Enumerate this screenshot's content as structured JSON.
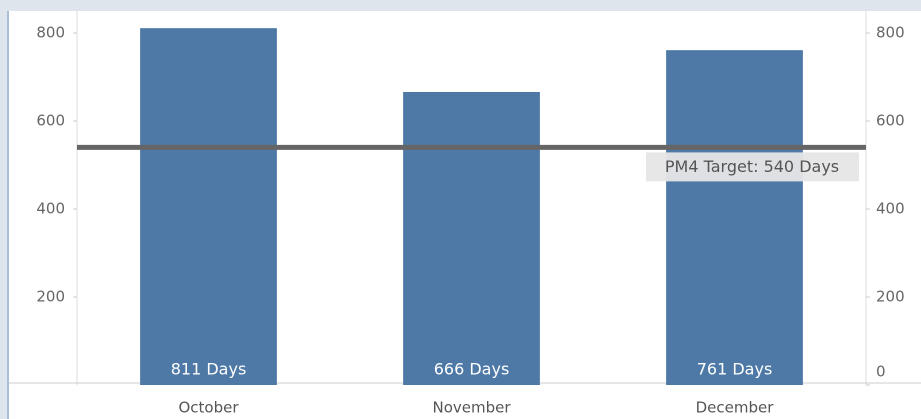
{
  "chart_data": {
    "type": "bar",
    "categories": [
      "October",
      "November",
      "December"
    ],
    "values": [
      811,
      666,
      761
    ],
    "value_labels": [
      "811 Days",
      "666 Days",
      "761 Days"
    ],
    "color": "#4e79a7",
    "ylim": [
      0,
      850
    ],
    "yticks": [
      200,
      400,
      600,
      800
    ],
    "y2lim": [
      0,
      850
    ],
    "y2ticks": [
      0,
      200,
      400,
      600,
      800
    ],
    "reference_line": {
      "value": 540,
      "label": "PM4 Target: 540 Days",
      "color": "#666666"
    }
  }
}
